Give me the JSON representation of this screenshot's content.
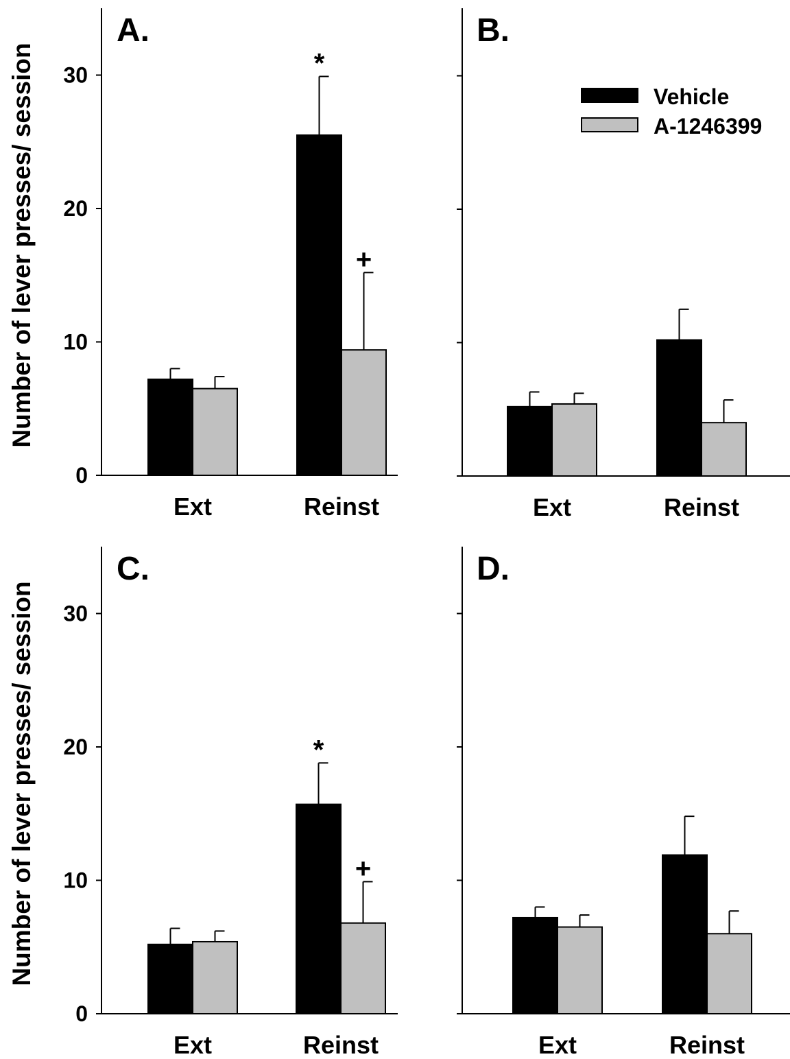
{
  "colors": {
    "vehicle": "#000000",
    "drug": "#c0c0c0",
    "axis": "#000000"
  },
  "chart_data": [
    {
      "type": "bar",
      "panel_label": "A.",
      "ylabel": "Number of lever presses/ session",
      "ylim": [
        0,
        35
      ],
      "yticks": [
        0,
        10,
        20,
        30
      ],
      "show_tick_labels": true,
      "categories": [
        "Ext",
        "Reinst"
      ],
      "series": [
        {
          "name": "Vehicle",
          "values": [
            7.2,
            25.5
          ],
          "errors": [
            0.8,
            4.4
          ]
        },
        {
          "name": "A-1246399",
          "values": [
            6.5,
            9.4
          ],
          "errors": [
            0.9,
            5.8
          ]
        }
      ],
      "annotations": [
        {
          "text": "*",
          "series": 0,
          "category": 1
        },
        {
          "text": "+",
          "series": 1,
          "category": 1
        }
      ]
    },
    {
      "type": "bar",
      "panel_label": "B.",
      "ylim": [
        0,
        35
      ],
      "yticks": [
        0,
        10,
        20,
        30
      ],
      "show_tick_labels": false,
      "categories": [
        "Ext",
        "Reinst"
      ],
      "series": [
        {
          "name": "Vehicle",
          "values": [
            5.2,
            10.2
          ],
          "errors": [
            1.1,
            2.3
          ]
        },
        {
          "name": "A-1246399",
          "values": [
            5.4,
            4.0
          ],
          "errors": [
            0.8,
            1.7
          ]
        }
      ],
      "legend": {
        "position": "top-right",
        "entries": [
          "Vehicle",
          "A-1246399"
        ]
      },
      "annotations": []
    },
    {
      "type": "bar",
      "panel_label": "C.",
      "ylabel": "Number of lever presses/ session",
      "ylim": [
        0,
        35
      ],
      "yticks": [
        0,
        10,
        20,
        30
      ],
      "show_tick_labels": true,
      "categories": [
        "Ext",
        "Reinst"
      ],
      "series": [
        {
          "name": "Vehicle",
          "values": [
            5.2,
            15.7
          ],
          "errors": [
            1.2,
            3.1
          ]
        },
        {
          "name": "A-1246399",
          "values": [
            5.4,
            6.8
          ],
          "errors": [
            0.8,
            3.1
          ]
        }
      ],
      "annotations": [
        {
          "text": "*",
          "series": 0,
          "category": 1
        },
        {
          "text": "+",
          "series": 1,
          "category": 1
        }
      ]
    },
    {
      "type": "bar",
      "panel_label": "D.",
      "ylim": [
        0,
        35
      ],
      "yticks": [
        0,
        10,
        20,
        30
      ],
      "show_tick_labels": false,
      "categories": [
        "Ext",
        "Reinst"
      ],
      "series": [
        {
          "name": "Vehicle",
          "values": [
            7.2,
            11.9
          ],
          "errors": [
            0.8,
            2.9
          ]
        },
        {
          "name": "A-1246399",
          "values": [
            6.5,
            6.0
          ],
          "errors": [
            0.9,
            1.7
          ]
        }
      ],
      "annotations": []
    }
  ]
}
